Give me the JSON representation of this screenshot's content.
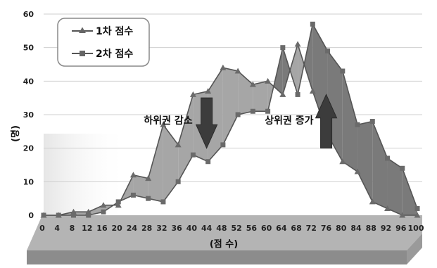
{
  "chart_data": {
    "type": "line",
    "xlabel": "(점  수)",
    "ylabel": "(명)",
    "ylim": [
      0,
      60
    ],
    "yticks": [
      0,
      10,
      20,
      30,
      40,
      50,
      60
    ],
    "x": [
      0,
      4,
      8,
      12,
      16,
      20,
      24,
      28,
      32,
      36,
      40,
      44,
      48,
      52,
      56,
      60,
      64,
      68,
      72,
      76,
      80,
      84,
      88,
      92,
      96,
      100
    ],
    "grid": true,
    "legend_position": "top-left",
    "series": [
      {
        "name": "1차 점수",
        "marker": "triangle",
        "values": [
          0,
          0,
          1,
          1,
          3,
          3,
          12,
          11,
          27,
          21,
          36,
          37,
          44,
          43,
          39,
          40,
          36,
          51,
          37,
          24,
          16,
          13,
          4,
          2,
          0,
          0
        ]
      },
      {
        "name": "2차 점수",
        "marker": "square",
        "values": [
          0,
          0,
          0,
          0,
          1,
          4,
          6,
          5,
          4,
          10,
          18,
          16,
          21,
          30,
          31,
          31,
          50,
          36,
          57,
          49,
          43,
          27,
          28,
          17,
          14,
          2
        ]
      }
    ],
    "annotations": [
      {
        "text": "하위권 감소",
        "arrow": "down",
        "at_x": 44
      },
      {
        "text": "상위권 증가",
        "arrow": "up",
        "at_x": 76
      }
    ]
  },
  "colors": {
    "series_line": "#555555",
    "band_fill": "#a6a6a6",
    "band_fill_dark": "#7a7a7a",
    "arrow_fill": "#3c3c3c",
    "floor_top": "#b4b4b4",
    "floor_front": "#8c8c8c",
    "grid": "#cfcfcf"
  }
}
